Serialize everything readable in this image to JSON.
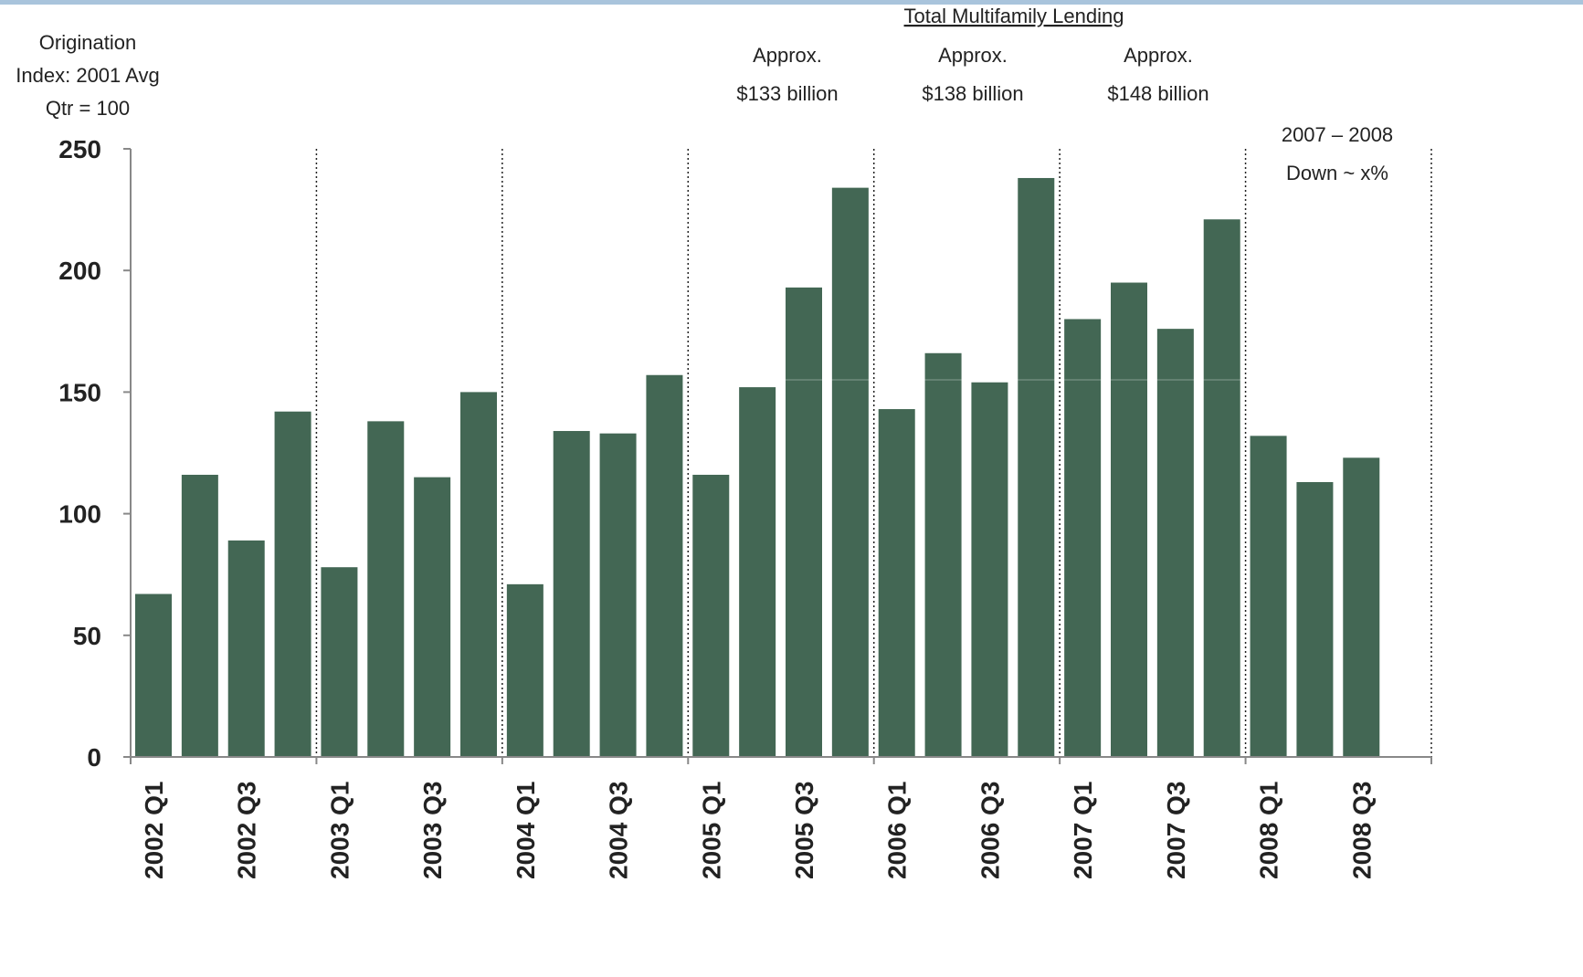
{
  "chart_data": {
    "type": "bar",
    "ylabel_lines": [
      "Origination",
      "Index: 2001 Avg",
      "Qtr = 100"
    ],
    "ylim": [
      0,
      250
    ],
    "yticks": [
      0,
      50,
      100,
      150,
      200,
      250
    ],
    "categories": [
      "2002 Q1",
      "2002 Q2",
      "2002 Q3",
      "2002 Q4",
      "2003 Q1",
      "2003 Q2",
      "2003 Q3",
      "2003 Q4",
      "2004 Q1",
      "2004 Q2",
      "2004 Q3",
      "2004 Q4",
      "2005 Q1",
      "2005 Q2",
      "2005 Q3",
      "2005 Q4",
      "2006 Q1",
      "2006 Q2",
      "2006 Q3",
      "2006 Q4",
      "2007 Q1",
      "2007 Q2",
      "2007 Q3",
      "2007 Q4",
      "2008 Q1",
      "2008 Q2",
      "2008 Q3"
    ],
    "tick_labels": [
      "2002 Q1",
      "",
      "2002 Q3",
      "",
      "2003 Q1",
      "",
      "2003 Q3",
      "",
      "2004 Q1",
      "",
      "2004 Q3",
      "",
      "2005 Q1",
      "",
      "2005 Q3",
      "",
      "2006 Q1",
      "",
      "2006 Q3",
      "",
      "2007 Q1",
      "",
      "2007 Q3",
      "",
      "2008 Q1",
      "",
      "2008 Q3"
    ],
    "values": [
      67,
      116,
      89,
      142,
      78,
      138,
      115,
      150,
      71,
      134,
      133,
      157,
      116,
      152,
      193,
      234,
      143,
      166,
      154,
      238,
      180,
      195,
      176,
      221,
      132,
      113,
      123
    ],
    "bar_color": "#436754",
    "grid": false,
    "annotations": {
      "header": "Total Multifamily Lending",
      "approx": [
        {
          "label": "Approx.",
          "value": "$133 billion"
        },
        {
          "label": "Approx.",
          "value": "$138 billion"
        },
        {
          "label": "Approx.",
          "value": "$148 billion"
        }
      ],
      "note_lines": [
        "2007 – 2008",
        "Down ~ x%"
      ]
    }
  }
}
